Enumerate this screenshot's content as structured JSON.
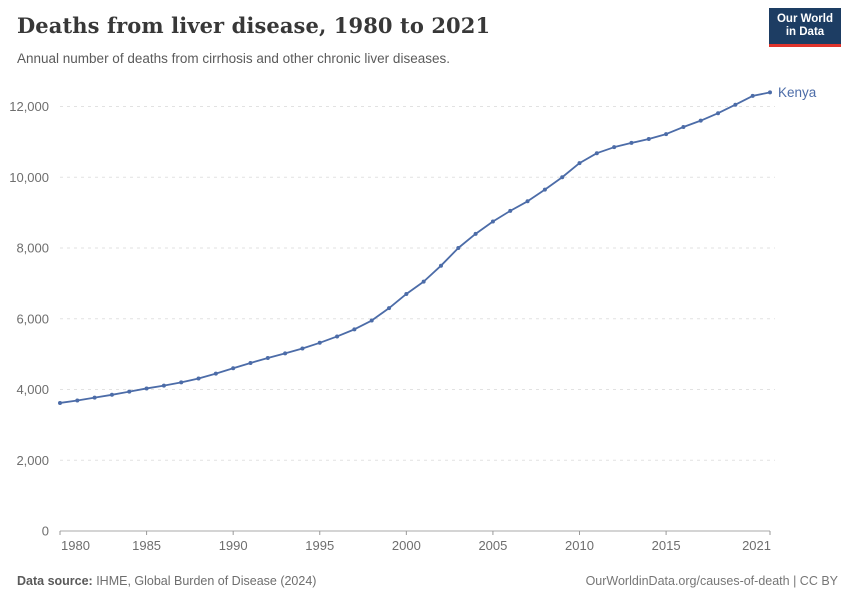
{
  "header": {
    "title": "Deaths from liver disease, 1980 to 2021",
    "subtitle": "Annual number of deaths from cirrhosis and other chronic liver diseases.",
    "logo_line1": "Our World",
    "logo_line2": "in Data"
  },
  "footer": {
    "source_label": "Data source:",
    "source_text": " IHME, Global Burden of Disease (2024)",
    "right_text": "OurWorldinData.org/causes-of-death | CC BY"
  },
  "colors": {
    "line": "#4c6ca8",
    "entity_label": "#4c6ca8",
    "gridline": "#e2e2e2",
    "axis": "#a8a8a8",
    "tick": "#999999",
    "axis_text": "#6e6e6e",
    "logo_bg": "#1d3d63",
    "logo_red": "#e0342c"
  },
  "chart_data": {
    "type": "line",
    "title": "Deaths from liver disease, 1980 to 2021",
    "subtitle": "Annual number of deaths from cirrhosis and other chronic liver diseases.",
    "xlabel": "",
    "ylabel": "",
    "legend_position": "end-of-line",
    "grid": "horizontal-dashed",
    "xlim": [
      1980,
      2021
    ],
    "ylim": [
      0,
      12000
    ],
    "x_ticks": [
      1980,
      1985,
      1990,
      1995,
      2000,
      2005,
      2010,
      2015,
      2021
    ],
    "y_ticks": [
      0,
      2000,
      4000,
      6000,
      8000,
      10000,
      12000
    ],
    "y_tick_labels": [
      "0",
      "2,000",
      "4,000",
      "6,000",
      "8,000",
      "10,000",
      "12,000"
    ],
    "series": [
      {
        "name": "Kenya",
        "x": [
          1980,
          1981,
          1982,
          1983,
          1984,
          1985,
          1986,
          1987,
          1988,
          1989,
          1990,
          1991,
          1992,
          1993,
          1994,
          1995,
          1996,
          1997,
          1998,
          1999,
          2000,
          2001,
          2002,
          2003,
          2004,
          2005,
          2006,
          2007,
          2008,
          2009,
          2010,
          2011,
          2012,
          2013,
          2014,
          2015,
          2016,
          2017,
          2018,
          2019,
          2020,
          2021
        ],
        "values": [
          3620,
          3690,
          3770,
          3850,
          3940,
          4030,
          4110,
          4200,
          4310,
          4450,
          4600,
          4750,
          4890,
          5020,
          5160,
          5320,
          5500,
          5700,
          5950,
          6300,
          6700,
          7050,
          7500,
          8000,
          8400,
          8750,
          9050,
          9320,
          9650,
          10000,
          10400,
          10680,
          10850,
          10970,
          11080,
          11220,
          11420,
          11600,
          11810,
          12050,
          12300,
          12400
        ]
      }
    ]
  }
}
